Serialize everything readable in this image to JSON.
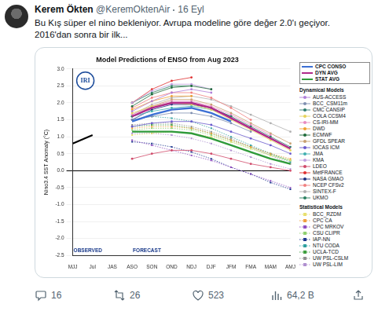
{
  "tweet": {
    "author": "Kerem Ökten",
    "handle": "@KeremOktenAir",
    "date": "16 Eyl",
    "text": [
      "Bu Kış süper el nino bekleniyor. Avrupa modeline göre değer 2.0'ı geçiyor.",
      "2016'dan sonra bir ilk..."
    ],
    "stats": {
      "replies": "16",
      "retweets": "26",
      "likes": "523",
      "views": "64,2 B"
    }
  },
  "chart_data": {
    "type": "line",
    "title": "Model Predictions of ENSO from Aug 2023",
    "logo": "IRI",
    "y_label": "Nino3.4 SST Anomaly (°C)",
    "categories": [
      "MJJ",
      "Jul",
      "JAS",
      "ASO",
      "SON",
      "OND",
      "NDJ",
      "DJF",
      "JFM",
      "FMA",
      "MAM",
      "AMJ"
    ],
    "ylim": [
      -2.5,
      3.0
    ],
    "yticks": [
      {
        "value": -2.5,
        "label": "-2.5"
      },
      {
        "value": -2,
        "label": "-2.0"
      },
      {
        "value": -1.5,
        "label": "-1.5"
      },
      {
        "value": -1,
        "label": "-1.0"
      },
      {
        "value": -0.5,
        "label": "-0.5"
      },
      {
        "value": 0,
        "label": "0.0"
      },
      {
        "value": 0.5,
        "label": "0.5"
      },
      {
        "value": 1,
        "label": "1.0"
      },
      {
        "value": 1.5,
        "label": "1.5"
      },
      {
        "value": 2,
        "label": "2.0"
      },
      {
        "value": 2.5,
        "label": "2.5"
      },
      {
        "value": 3,
        "label": "3.0"
      }
    ],
    "grid": true,
    "annotations": [
      {
        "text": "OBSERVED",
        "x": "MJJ"
      },
      {
        "text": "FORECAST",
        "x": "ASO"
      }
    ],
    "observed": {
      "color": "#000000",
      "values": [
        0.8,
        1.05,
        null,
        null,
        null,
        null,
        null,
        null,
        null,
        null,
        null,
        null
      ]
    },
    "series": [
      {
        "name": "CPC CONSO",
        "color": "#3b6fd4",
        "line_style": "solid",
        "marker": "none",
        "values": [
          null,
          null,
          null,
          1.45,
          1.65,
          1.8,
          1.85,
          1.7,
          1.45,
          null,
          null,
          null
        ]
      },
      {
        "name": "DYN AVG",
        "color": "#b02a8a",
        "line_style": "solid",
        "marker": "none",
        "values": [
          null,
          null,
          null,
          1.6,
          1.85,
          2.0,
          2.0,
          1.85,
          1.55,
          1.25,
          0.95,
          0.65
        ]
      },
      {
        "name": "STAT AVG",
        "color": "#2f9a3a",
        "line_style": "solid",
        "marker": "none",
        "values": [
          null,
          null,
          null,
          1.15,
          1.15,
          1.15,
          1.1,
          0.95,
          0.75,
          0.55,
          0.35,
          0.2
        ]
      }
    ],
    "dynamical": {
      "title": "Dynamical Models",
      "series": [
        {
          "name": "AUS-ACCESS",
          "color": "#b07fd8",
          "line_style": "solid",
          "marker": "circle",
          "values": [
            null,
            null,
            null,
            1.75,
            2.05,
            2.3,
            2.4,
            2.3,
            null,
            null,
            null,
            null
          ]
        },
        {
          "name": "BCC_CSM11m",
          "color": "#7f8fb0",
          "line_style": "solid",
          "marker": "circle",
          "values": [
            null,
            null,
            null,
            1.5,
            1.6,
            1.7,
            1.7,
            1.6,
            1.4,
            1.15,
            null,
            null
          ]
        },
        {
          "name": "CMC CANSIP",
          "color": "#2e7d6f",
          "line_style": "solid",
          "marker": "circle",
          "values": [
            null,
            null,
            null,
            1.6,
            1.85,
            2.0,
            2.0,
            1.85,
            1.6,
            1.3,
            1.0,
            0.7
          ]
        },
        {
          "name": "COLA CCSM4",
          "color": "#e6d35a",
          "line_style": "solid",
          "marker": "circle",
          "values": [
            null,
            null,
            null,
            1.7,
            1.9,
            2.0,
            1.95,
            1.8,
            1.5,
            1.2,
            0.9,
            0.6
          ]
        },
        {
          "name": "CS-IRI-MM",
          "color": "#e88ac0",
          "line_style": "solid",
          "marker": "circle",
          "values": [
            null,
            null,
            null,
            1.65,
            1.9,
            2.05,
            2.05,
            1.9,
            1.65,
            1.35,
            1.05,
            null
          ]
        },
        {
          "name": "DWD",
          "color": "#f0a030",
          "line_style": "solid",
          "marker": "circle",
          "values": [
            null,
            null,
            null,
            1.8,
            2.05,
            2.2,
            2.2,
            null,
            null,
            null,
            null,
            null
          ]
        },
        {
          "name": "ECMWF",
          "color": "#1f6b3a",
          "line_style": "solid",
          "marker": "circle",
          "values": [
            null,
            null,
            null,
            1.9,
            2.25,
            2.45,
            2.5,
            2.4,
            null,
            null,
            null,
            null
          ]
        },
        {
          "name": "GFDL SPEAR",
          "color": "#c8a070",
          "line_style": "solid",
          "marker": "circle",
          "values": [
            null,
            null,
            null,
            1.6,
            1.9,
            2.1,
            2.1,
            1.95,
            1.7,
            1.4,
            1.1,
            0.8
          ]
        },
        {
          "name": "IOCAS ICM",
          "color": "#6a5acd",
          "line_style": "solid",
          "marker": "circle",
          "values": [
            null,
            null,
            null,
            1.3,
            1.4,
            1.45,
            1.45,
            1.35,
            1.15,
            0.95,
            0.75,
            0.5
          ]
        },
        {
          "name": "JMA",
          "color": "#40b0b0",
          "line_style": "solid",
          "marker": "circle",
          "values": [
            null,
            null,
            null,
            1.6,
            1.75,
            1.85,
            1.9,
            1.8,
            1.6,
            null,
            null,
            null
          ]
        },
        {
          "name": "KMA",
          "color": "#c0a0e0",
          "line_style": "solid",
          "marker": "circle",
          "values": [
            null,
            null,
            null,
            2.0,
            2.35,
            2.55,
            2.55,
            2.4,
            null,
            null,
            null,
            null
          ]
        },
        {
          "name": "LDEO",
          "color": "#d04a6a",
          "line_style": "solid",
          "marker": "circle",
          "values": [
            null,
            null,
            null,
            0.35,
            0.5,
            0.6,
            0.6,
            0.5,
            0.35,
            0.2,
            0.1,
            0.0
          ]
        },
        {
          "name": "MetFRANCE",
          "color": "#e03030",
          "line_style": "solid",
          "marker": "circle",
          "values": [
            null,
            null,
            null,
            2.0,
            2.4,
            2.65,
            2.75,
            null,
            null,
            null,
            null,
            null
          ]
        },
        {
          "name": "NASA GMAO",
          "color": "#203080",
          "line_style": "solid",
          "marker": "circle",
          "values": [
            null,
            null,
            null,
            1.5,
            1.8,
            1.95,
            1.95,
            1.85,
            1.6,
            null,
            null,
            null
          ]
        },
        {
          "name": "NCEP CFSv2",
          "color": "#f08080",
          "line_style": "solid",
          "marker": "circle",
          "values": [
            null,
            null,
            null,
            1.85,
            2.15,
            2.3,
            2.3,
            2.15,
            1.85,
            1.5,
            null,
            null
          ]
        },
        {
          "name": "SINTEX-F",
          "color": "#b0b0b0",
          "line_style": "solid",
          "marker": "circle",
          "values": [
            null,
            null,
            null,
            1.65,
            1.95,
            2.15,
            2.2,
            2.1,
            1.9,
            1.65,
            1.4,
            1.15
          ]
        },
        {
          "name": "UKMO",
          "color": "#2a8060",
          "line_style": "solid",
          "marker": "circle",
          "values": [
            null,
            null,
            null,
            2.0,
            2.3,
            2.5,
            2.5,
            null,
            null,
            null,
            null,
            null
          ]
        }
      ]
    },
    "statistical": {
      "title": "Statistical Models",
      "series": [
        {
          "name": "BCC_RZDM",
          "color": "#e8e070",
          "line_style": "dotted",
          "marker": "square",
          "values": [
            null,
            null,
            null,
            1.05,
            1.1,
            1.15,
            1.1,
            1.0,
            0.85,
            0.65,
            0.45,
            0.3
          ]
        },
        {
          "name": "CPC CA",
          "color": "#f0a040",
          "line_style": "dotted",
          "marker": "square",
          "values": [
            null,
            null,
            null,
            1.25,
            1.3,
            1.3,
            1.25,
            1.1,
            0.9,
            0.7,
            0.5,
            0.35
          ]
        },
        {
          "name": "CPC MRKOV",
          "color": "#9050c0",
          "line_style": "dotted",
          "marker": "square",
          "values": [
            null,
            null,
            null,
            0.9,
            0.75,
            0.6,
            0.45,
            0.3,
            0.1,
            -0.1,
            -0.3,
            -0.5
          ]
        },
        {
          "name": "CSU CLIPR",
          "color": "#90d070",
          "line_style": "dotted",
          "marker": "square",
          "values": [
            null,
            null,
            null,
            1.2,
            1.25,
            1.25,
            1.2,
            1.05,
            0.85,
            0.65,
            0.45,
            0.3
          ]
        },
        {
          "name": "IAP-NN",
          "color": "#203a90",
          "line_style": "dotted",
          "marker": "square",
          "values": [
            null,
            null,
            null,
            0.85,
            0.8,
            0.7,
            0.55,
            0.35,
            0.1,
            -0.1,
            -0.35,
            -0.55
          ]
        },
        {
          "name": "NTU CODA",
          "color": "#30a0a0",
          "line_style": "dotted",
          "marker": "square",
          "values": [
            null,
            null,
            null,
            1.5,
            1.6,
            1.55,
            1.45,
            1.25,
            1.0,
            0.75,
            0.5,
            0.25
          ]
        },
        {
          "name": "UCLA-TCD",
          "color": "#40a040",
          "line_style": "dotted",
          "marker": "square",
          "values": [
            null,
            null,
            null,
            1.3,
            1.35,
            1.35,
            1.25,
            1.1,
            0.9,
            0.7,
            0.5,
            0.3
          ]
        },
        {
          "name": "UW PSL-CSLM",
          "color": "#909090",
          "line_style": "dotted",
          "marker": "square",
          "values": [
            null,
            null,
            null,
            1.35,
            1.4,
            1.4,
            1.3,
            1.15,
            0.95,
            0.7,
            0.45,
            0.2
          ]
        },
        {
          "name": "UW PSL-LIM",
          "color": "#b090d0",
          "line_style": "dotted",
          "marker": "square",
          "values": [
            null,
            null,
            null,
            1.1,
            1.1,
            1.05,
            0.95,
            0.8,
            0.6,
            0.4,
            0.2,
            0.05
          ]
        }
      ]
    }
  }
}
